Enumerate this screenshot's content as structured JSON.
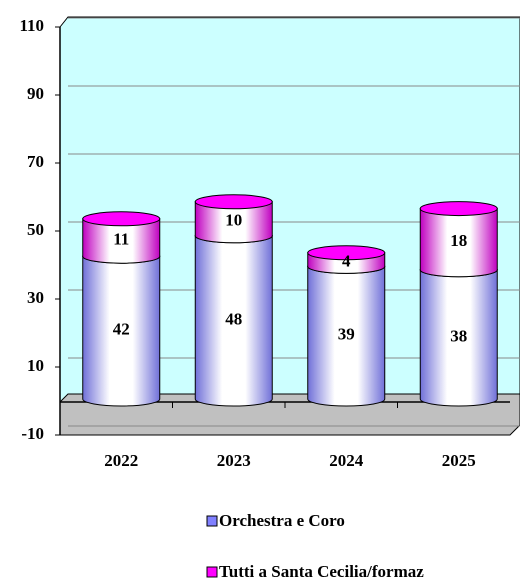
{
  "chart_data": {
    "type": "bar",
    "stacked": true,
    "categories": [
      "2022",
      "2023",
      "2024",
      "2025"
    ],
    "series": [
      {
        "name": "Orchestra e Coro",
        "color": "#8080ff",
        "values": [
          42,
          48,
          39,
          38
        ]
      },
      {
        "name": "Tutti a Santa Cecilia/formaz",
        "color": "#ff00ff",
        "values": [
          11,
          10,
          4,
          18
        ]
      }
    ],
    "ylim": [
      -10,
      110
    ],
    "yticks": [
      -10,
      10,
      30,
      50,
      70,
      90,
      110
    ],
    "grid": true
  }
}
